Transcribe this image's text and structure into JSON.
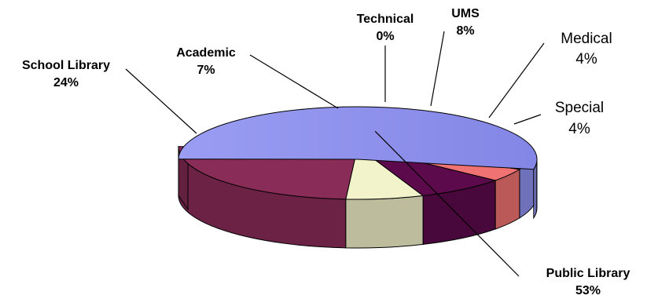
{
  "chart_data": {
    "type": "pie",
    "style": "3d-exploded",
    "title": "",
    "slices": [
      {
        "name": "Public Library",
        "value": 53,
        "pct_label": "53%",
        "color": "#8f91ec",
        "bold": true
      },
      {
        "name": "School Library",
        "value": 24,
        "pct_label": "24%",
        "color": "#8a2c58",
        "bold": true
      },
      {
        "name": "Academic",
        "value": 7,
        "pct_label": "7%",
        "color": "#f2f2cb",
        "bold": true
      },
      {
        "name": "Technical",
        "value": 0,
        "pct_label": "0%",
        "color": "#b8e8f0",
        "bold": true
      },
      {
        "name": "UMS",
        "value": 8,
        "pct_label": "8%",
        "color": "#5c0a4c",
        "bold": true
      },
      {
        "name": "Medical",
        "value": 4,
        "pct_label": "4%",
        "color": "#f07272",
        "bold": false
      },
      {
        "name": "Special",
        "value": 4,
        "pct_label": "4%",
        "color": "#8e92ee",
        "bold": false
      }
    ]
  }
}
